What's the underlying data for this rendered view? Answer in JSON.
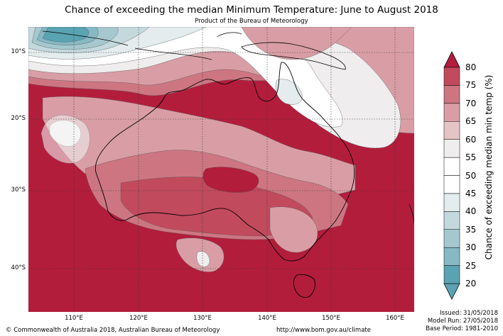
{
  "title": "Chance of exceeding the median Minimum Temperature: June to August 2018",
  "subtitle": "Product of the Bureau of Meteorology",
  "map": {
    "lat_labels": [
      "10°S",
      "20°S",
      "30°S",
      "40°S"
    ],
    "lon_labels": [
      "110°E",
      "120°E",
      "130°E",
      "140°E",
      "150°E",
      "160°E"
    ]
  },
  "colorbar": {
    "title": "Chance of exceeding median min temp (%)",
    "ticks": [
      "20",
      "25",
      "30",
      "35",
      "40",
      "45",
      "50",
      "55",
      "60",
      "65",
      "70",
      "75",
      "80"
    ],
    "colors": [
      "#5aa3b3",
      "#86b9c4",
      "#a5c8cf",
      "#c4d9dd",
      "#e4ecee",
      "#ffffff",
      "#ffffff",
      "#efeded",
      "#e5c4c7",
      "#d99ea5",
      "#cd7682",
      "#c24a5d",
      "#b31d3c"
    ]
  },
  "footer": {
    "copyright": "© Commonwealth of Australia 2018, Australian Bureau of Meteorology",
    "url": "http://www.bom.gov.au/climate",
    "issued": "Issued: 31/05/2018",
    "model_run": "Model Run: 27/05/2018",
    "base_period": "Base Period: 1981-2010"
  }
}
